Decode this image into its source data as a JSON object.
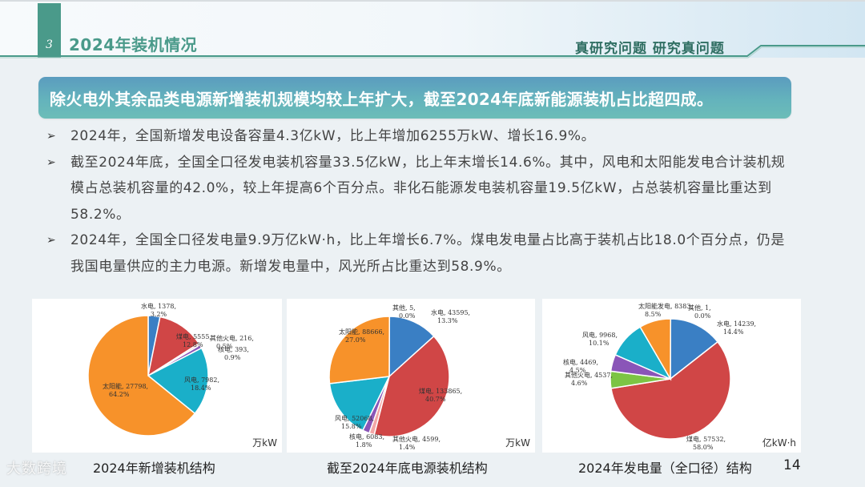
{
  "header": {
    "section_number": "3",
    "section_title": "2024年装机情况",
    "slogan": "真研究问题 研究真问题"
  },
  "banner": {
    "text": "除火电外其余品类电源新增装机规模均较上年扩大，截至2024年底新能源装机占比超四成。"
  },
  "bullets": [
    {
      "marker": "➢",
      "text": "2024年，全国新增发电设备容量4.3亿kW，比上年增加6255万kW、增长16.9%。"
    },
    {
      "marker": "➢",
      "text": "截至2024年底，全国全口径发电装机容量33.5亿kW，比上年末增长14.6%。其中，风电和太阳能发电合计装机规模占总装机容量的42.0%，较上年提高6个百分点。非化石能源发电装机容量19.5亿kW，占总装机容量比重达到58.2%。"
    },
    {
      "marker": "➢",
      "text": "2024年，全国全口径发电量9.9万亿kW·h，比上年增长6.7%。煤电发电量占比高于装机占比18.0个百分点，仍是我国电量供应的主力电源。新增发电量中，风光所占比重达到58.9%。"
    }
  ],
  "colors": {
    "hydro": "#3a7fc4",
    "coal": "#d04646",
    "other_thermal": "#f2a7a7",
    "nuclear": "#8a55b8",
    "wind": "#1aafc9",
    "solar": "#f7922a",
    "other": "#7a7a7a",
    "other_thermal_gen": "#7cc444",
    "accent": "#4a9a8a"
  },
  "chart_data": [
    {
      "type": "pie",
      "title": "2024年新增装机结构",
      "unit": "万kW",
      "slices": [
        {
          "name": "水电",
          "value": 1378,
          "pct": "3.2%"
        },
        {
          "name": "煤电",
          "value": 5555,
          "pct": "12.8%"
        },
        {
          "name": "其他火电",
          "value": 216,
          "pct": "0.5%"
        },
        {
          "name": "核电",
          "value": 393,
          "pct": "0.9%"
        },
        {
          "name": "风电",
          "value": 7982,
          "pct": "18.4%"
        },
        {
          "name": "太阳能",
          "value": 27798,
          "pct": "64.2%"
        }
      ]
    },
    {
      "type": "pie",
      "title": "截至2024年底电源装机结构",
      "unit": "万kW",
      "slices": [
        {
          "name": "其他",
          "value": 5,
          "pct": "0.0%"
        },
        {
          "name": "水电",
          "value": 43595,
          "pct": "13.3%"
        },
        {
          "name": "煤电",
          "value": 133865,
          "pct": "40.7%"
        },
        {
          "name": "其他火电",
          "value": 4599,
          "pct": "1.4%"
        },
        {
          "name": "核电",
          "value": 6083,
          "pct": "1.8%"
        },
        {
          "name": "风电",
          "value": 52068,
          "pct": "15.8%"
        },
        {
          "name": "太阳能",
          "value": 88666,
          "pct": "27.0%"
        }
      ]
    },
    {
      "type": "pie",
      "title": "2024年发电量（全口径）结构",
      "unit": "亿kW·h",
      "slices": [
        {
          "name": "其他",
          "value": 1,
          "pct": "0.0%"
        },
        {
          "name": "水电",
          "value": 14239,
          "pct": "14.4%"
        },
        {
          "name": "煤电",
          "value": 57532,
          "pct": "58.0%"
        },
        {
          "name": "其他火电",
          "value": 4537,
          "pct": "4.6%"
        },
        {
          "name": "核电",
          "value": 4469,
          "pct": "4.5%"
        },
        {
          "name": "风电",
          "value": 9968,
          "pct": "10.1%"
        },
        {
          "name": "太阳能发电",
          "value": 8383,
          "pct": "8.5%"
        }
      ]
    }
  ],
  "charts_ui": [
    {
      "caption": "2024年新增装机结构",
      "unit": "万kW"
    },
    {
      "caption": "截至2024年底电源装机结构",
      "unit": "万kW"
    },
    {
      "caption": "2024年发电量（全口径）结构",
      "unit": "亿kW·h"
    }
  ],
  "footer": {
    "page_number": "14",
    "logo_text": "大数跨境"
  }
}
